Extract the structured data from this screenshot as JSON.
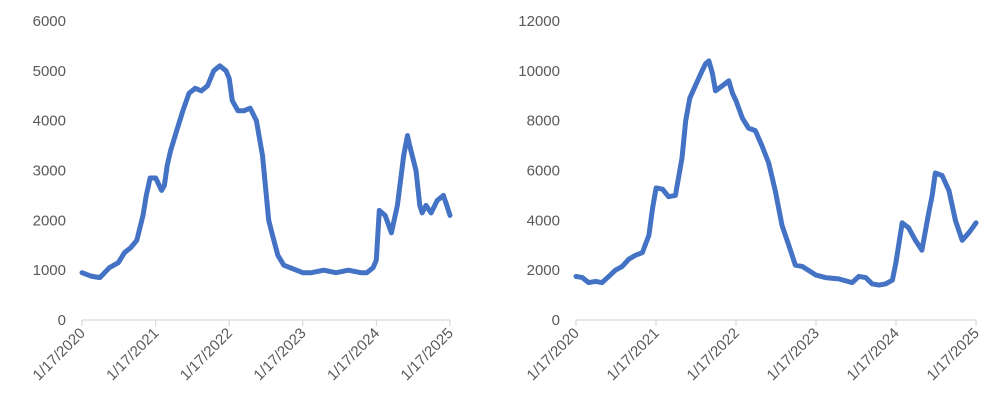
{
  "chart_data": [
    {
      "type": "line",
      "title": "",
      "xlabel": "",
      "ylabel": "",
      "ylim": [
        0,
        6000
      ],
      "yticks": [
        0,
        1000,
        2000,
        3000,
        4000,
        5000,
        6000
      ],
      "xticks": [
        "1/17/2020",
        "1/17/2021",
        "1/17/2022",
        "1/17/2023",
        "1/17/2024",
        "1/17/2025"
      ],
      "xlim": [
        "2020-01-17",
        "2025-01-17"
      ],
      "legend": "none",
      "grid": false,
      "color": "#4472C4",
      "series": [
        {
          "x": [
            "2020-01-17",
            "2020-03-01",
            "2020-04-15",
            "2020-06-01",
            "2020-07-15",
            "2020-08-15",
            "2020-09-15",
            "2020-10-15",
            "2020-11-15",
            "2020-12-01",
            "2020-12-20",
            "2021-01-17",
            "2021-02-15",
            "2021-03-01",
            "2021-03-15",
            "2021-04-01",
            "2021-05-01",
            "2021-06-01",
            "2021-07-01",
            "2021-08-01",
            "2021-09-01",
            "2021-10-01",
            "2021-11-01",
            "2021-12-01",
            "2022-01-01",
            "2022-01-17",
            "2022-02-01",
            "2022-03-01",
            "2022-04-01",
            "2022-05-01",
            "2022-06-01",
            "2022-07-01",
            "2022-08-01",
            "2022-08-20",
            "2022-09-15",
            "2022-10-15",
            "2022-11-15",
            "2023-01-17",
            "2023-03-01",
            "2023-05-01",
            "2023-07-01",
            "2023-09-01",
            "2023-11-01",
            "2023-12-01",
            "2024-01-01",
            "2024-01-17",
            "2024-02-01",
            "2024-03-01",
            "2024-04-01",
            "2024-05-01",
            "2024-06-01",
            "2024-06-20",
            "2024-07-01",
            "2024-08-01",
            "2024-08-20",
            "2024-09-01",
            "2024-09-20",
            "2024-10-15",
            "2024-11-15",
            "2024-12-15",
            "2025-01-01",
            "2025-01-17"
          ],
          "y": [
            950,
            880,
            850,
            1050,
            1150,
            1350,
            1450,
            1600,
            2100,
            2500,
            2850,
            2850,
            2600,
            2700,
            3100,
            3400,
            3800,
            4200,
            4550,
            4650,
            4600,
            4700,
            5000,
            5100,
            5000,
            4850,
            4400,
            4200,
            4200,
            4250,
            4000,
            3300,
            2000,
            1700,
            1300,
            1100,
            1050,
            950,
            950,
            1000,
            950,
            1000,
            950,
            950,
            1050,
            1200,
            2200,
            2100,
            1750,
            2300,
            3300,
            3700,
            3500,
            3000,
            2300,
            2150,
            2300,
            2150,
            2400,
            2500,
            2300,
            2100
          ]
        }
      ]
    },
    {
      "type": "line",
      "title": "",
      "xlabel": "",
      "ylabel": "",
      "ylim": [
        0,
        12000
      ],
      "yticks": [
        0,
        2000,
        4000,
        6000,
        8000,
        10000,
        12000
      ],
      "xticks": [
        "1/17/2020",
        "1/17/2021",
        "1/17/2022",
        "1/17/2023",
        "1/17/2024",
        "1/17/2025"
      ],
      "xlim": [
        "2020-01-17",
        "2025-01-17"
      ],
      "legend": "none",
      "grid": false,
      "color": "#4472C4",
      "series": [
        {
          "x": [
            "2020-01-17",
            "2020-02-15",
            "2020-03-15",
            "2020-04-15",
            "2020-05-15",
            "2020-06-15",
            "2020-07-15",
            "2020-08-15",
            "2020-09-15",
            "2020-10-15",
            "2020-11-15",
            "2020-12-15",
            "2021-01-01",
            "2021-01-17",
            "2021-02-15",
            "2021-03-15",
            "2021-04-15",
            "2021-05-15",
            "2021-06-01",
            "2021-06-20",
            "2021-07-15",
            "2021-08-15",
            "2021-09-01",
            "2021-09-15",
            "2021-10-01",
            "2021-10-15",
            "2021-11-15",
            "2021-12-15",
            "2022-01-01",
            "2022-01-17",
            "2022-02-15",
            "2022-03-15",
            "2022-04-15",
            "2022-05-15",
            "2022-06-15",
            "2022-07-15",
            "2022-08-15",
            "2022-09-15",
            "2022-10-15",
            "2022-11-15",
            "2023-01-17",
            "2023-03-01",
            "2023-05-01",
            "2023-07-01",
            "2023-08-01",
            "2023-09-01",
            "2023-10-01",
            "2023-11-01",
            "2023-12-01",
            "2024-01-01",
            "2024-01-17",
            "2024-02-15",
            "2024-03-15",
            "2024-04-15",
            "2024-05-15",
            "2024-06-15",
            "2024-07-01",
            "2024-07-15",
            "2024-08-15",
            "2024-09-15",
            "2024-10-15",
            "2024-11-15",
            "2024-12-15",
            "2025-01-01",
            "2025-01-17"
          ],
          "y": [
            1750,
            1700,
            1500,
            1550,
            1500,
            1750,
            2000,
            2150,
            2450,
            2600,
            2700,
            3400,
            4500,
            5300,
            5250,
            4950,
            5000,
            6500,
            8000,
            8900,
            9400,
            10000,
            10300,
            10400,
            9900,
            9200,
            9400,
            9600,
            9100,
            8800,
            8100,
            7700,
            7600,
            7000,
            6300,
            5200,
            3800,
            3000,
            2200,
            2150,
            1800,
            1700,
            1650,
            1500,
            1750,
            1700,
            1450,
            1400,
            1450,
            1600,
            2300,
            3900,
            3700,
            3200,
            2800,
            4300,
            5000,
            5900,
            5800,
            5200,
            4000,
            3200,
            3500,
            3700,
            3900
          ]
        }
      ]
    }
  ]
}
